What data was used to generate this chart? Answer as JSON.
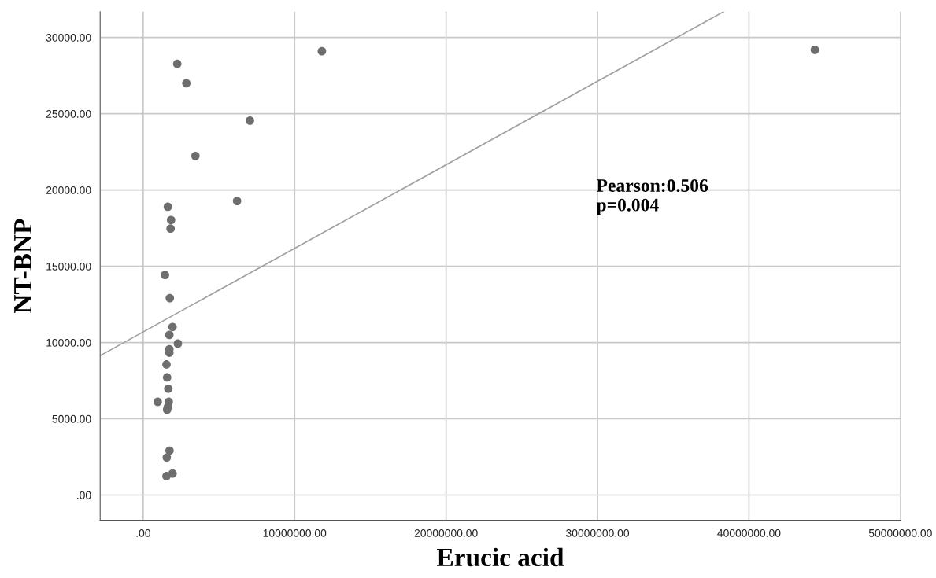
{
  "chart_data": {
    "type": "scatter",
    "xlabel": "Erucic acid",
    "ylabel": "NT-BNP",
    "grid": true,
    "xlim": [
      -2840000,
      50000000
    ],
    "ylim": [
      -1650,
      31700
    ],
    "xticks": [
      {
        "value": 0,
        "label": ".00"
      },
      {
        "value": 10000000,
        "label": "10000000.00"
      },
      {
        "value": 20000000,
        "label": "20000000.00"
      },
      {
        "value": 30000000,
        "label": "30000000.00"
      },
      {
        "value": 40000000,
        "label": "40000000.00"
      },
      {
        "value": 50000000,
        "label": "50000000.00"
      }
    ],
    "yticks": [
      {
        "value": 0,
        "label": ".00"
      },
      {
        "value": 5000,
        "label": "5000.00"
      },
      {
        "value": 10000,
        "label": "10000.00"
      },
      {
        "value": 15000,
        "label": "15000.00"
      },
      {
        "value": 20000,
        "label": "20000.00"
      },
      {
        "value": 25000,
        "label": "25000.00"
      },
      {
        "value": 30000,
        "label": "30000.00"
      }
    ],
    "annotations": [
      "Pearson:0.506\np=0.004"
    ],
    "series": [
      {
        "color": "#6e6e6e",
        "marker": "circle",
        "x": [
          2250000,
          2850000,
          11800000,
          7050000,
          3450000,
          6200000,
          1630000,
          1840000,
          1810000,
          1440000,
          1760000,
          1940000,
          1730000,
          2290000,
          1730000,
          1730000,
          1540000,
          1580000,
          1660000,
          960000,
          1690000,
          1580000,
          1630000,
          1740000,
          1560000,
          1940000,
          1540000,
          44350000
        ],
        "values": [
          28270,
          27000,
          29100,
          24550,
          22230,
          19280,
          18900,
          18030,
          17470,
          14430,
          12910,
          11020,
          10500,
          9930,
          9560,
          9330,
          8560,
          7710,
          6970,
          6110,
          6110,
          5600,
          5770,
          2910,
          2460,
          1410,
          1240,
          29190
        ]
      },
      {
        "type": "line",
        "color": "#a0a0a0",
        "x": [
          -2840000,
          38340000
        ],
        "values": [
          9140,
          31700
        ]
      }
    ]
  }
}
